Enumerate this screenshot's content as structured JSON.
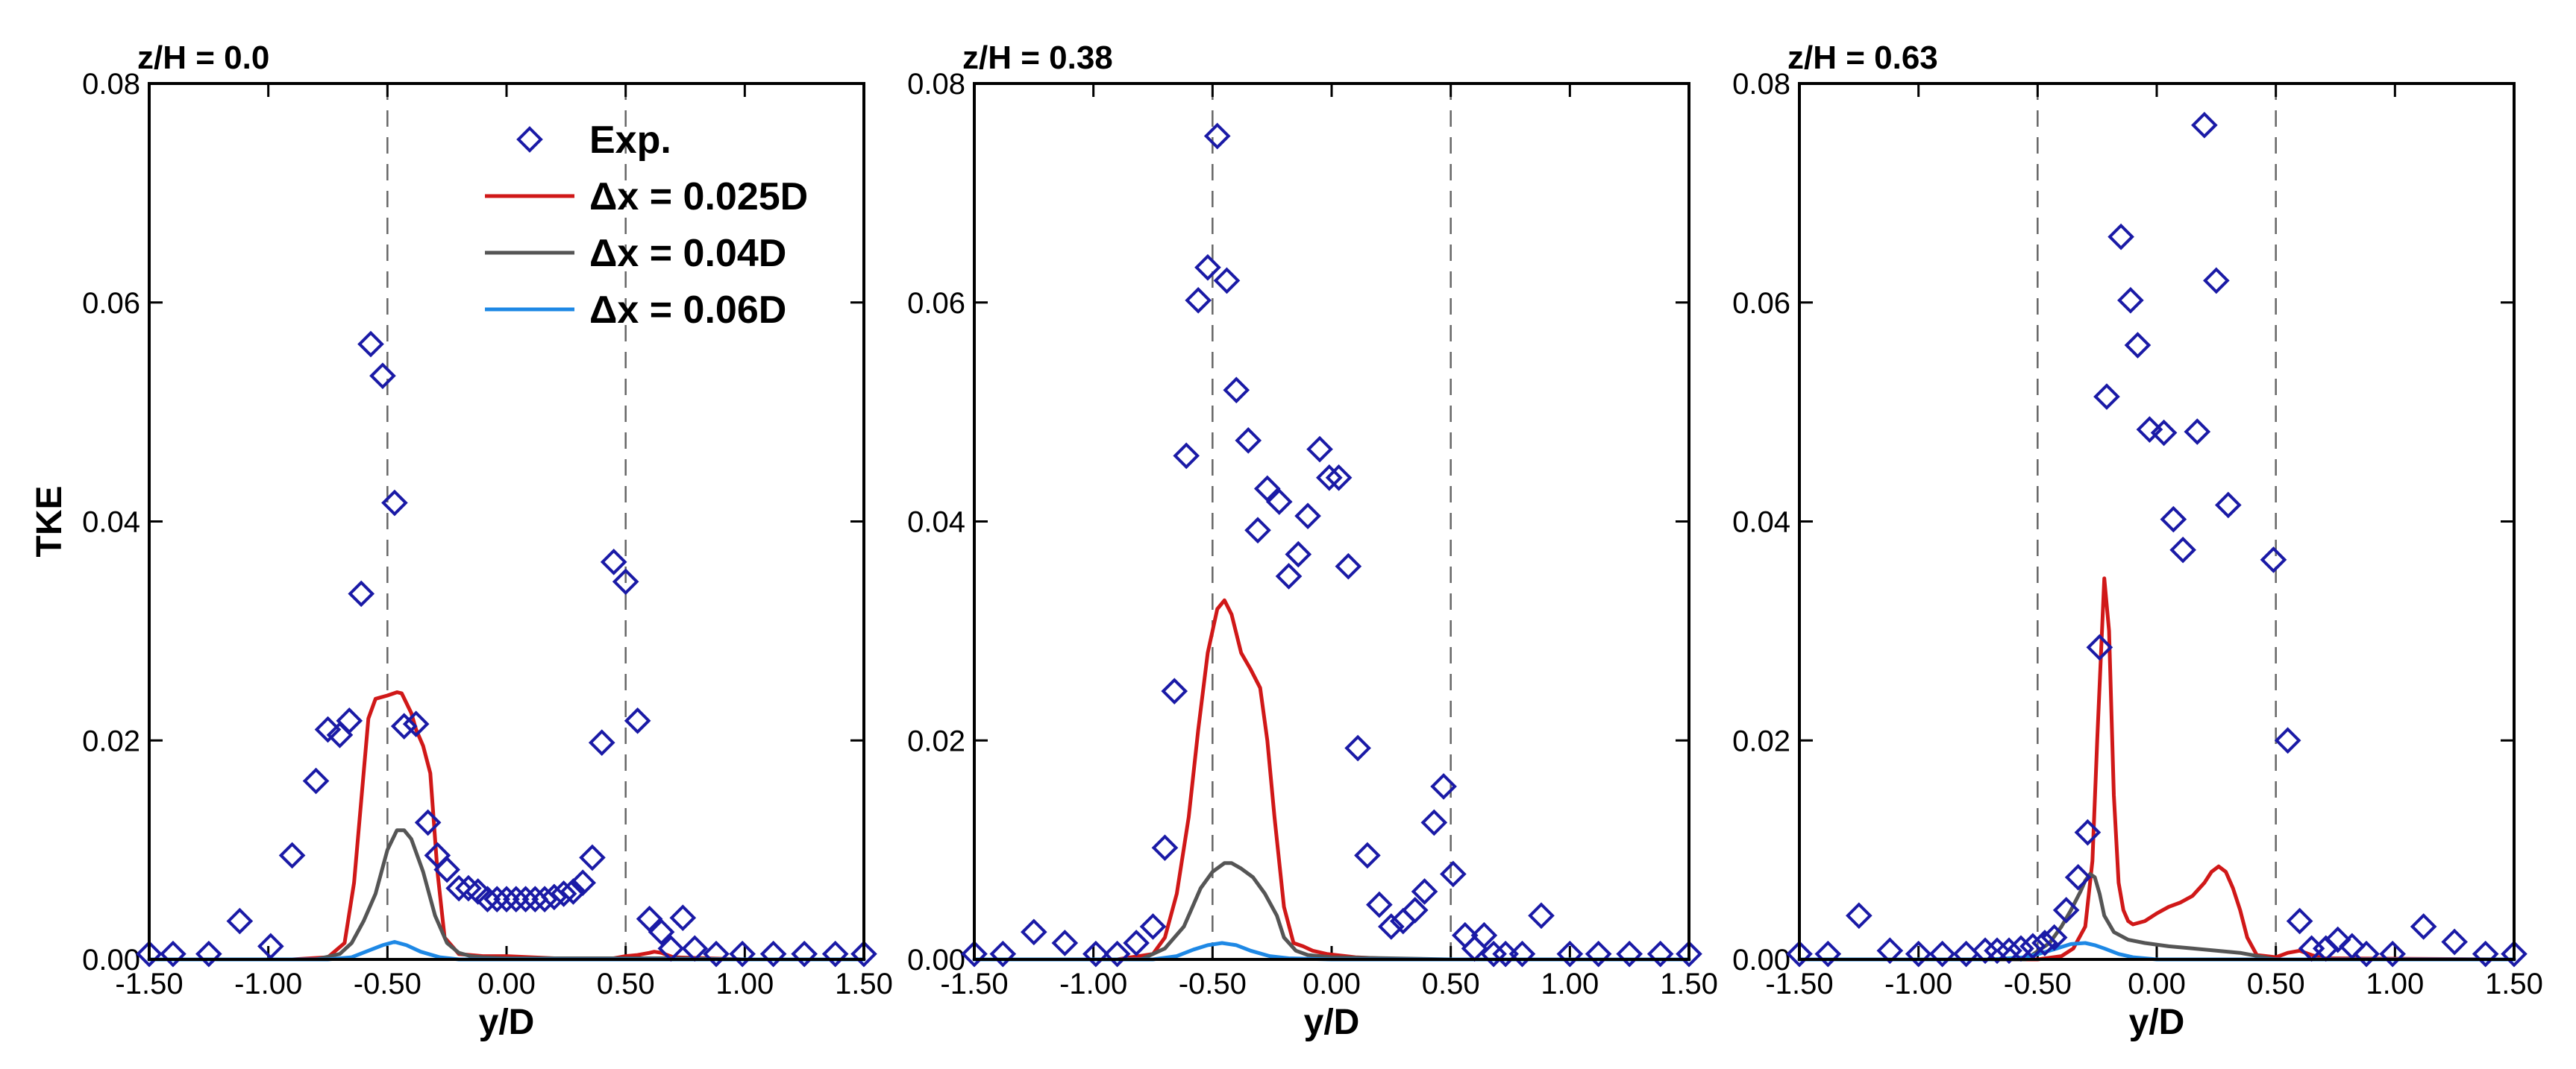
{
  "colors": {
    "exp": "#1a1aa6",
    "fine": "#d01818",
    "medium": "#555555",
    "coarse": "#1e88e5",
    "dashed": "#666666"
  },
  "legend": {
    "entries": [
      {
        "key": "exp",
        "label": "Exp."
      },
      {
        "key": "fine",
        "label": "Δx = 0.025D"
      },
      {
        "key": "medium",
        "label": "Δx = 0.04D"
      },
      {
        "key": "coarse",
        "label": "Δx = 0.06D"
      }
    ]
  },
  "chart_data": [
    {
      "type": "line",
      "title": "z/H = 0.0",
      "xlabel": "y/D",
      "ylabel": "TKE",
      "xlim": [
        -1.5,
        1.5
      ],
      "ylim": [
        0,
        0.08
      ],
      "xticks": [
        "-1.50",
        "-1.00",
        "-0.50",
        "0.00",
        "0.50",
        "1.00",
        "1.50"
      ],
      "yticks": [
        "0.00",
        "0.02",
        "0.04",
        "0.06",
        "0.08"
      ],
      "reference_lines_x": [
        -0.5,
        0.5
      ],
      "experiment": {
        "name": "Exp.",
        "x": [
          -1.5,
          -1.4,
          -1.25,
          -1.12,
          -0.99,
          -0.9,
          -0.8,
          -0.75,
          -0.7,
          -0.66,
          -0.61,
          -0.57,
          -0.52,
          -0.47,
          -0.43,
          -0.38,
          -0.33,
          -0.29,
          -0.25,
          -0.2,
          -0.16,
          -0.12,
          -0.08,
          -0.04,
          0.0,
          0.04,
          0.08,
          0.12,
          0.16,
          0.2,
          0.24,
          0.28,
          0.32,
          0.36,
          0.4,
          0.45,
          0.5,
          0.55,
          0.6,
          0.65,
          0.69,
          0.74,
          0.79,
          0.88,
          0.99,
          1.12,
          1.25,
          1.38,
          1.5
        ],
        "y": [
          0.0005,
          0.0005,
          0.0005,
          0.0035,
          0.0012,
          0.0095,
          0.0163,
          0.021,
          0.0205,
          0.0218,
          0.0334,
          0.0562,
          0.0533,
          0.0417,
          0.0213,
          0.0215,
          0.0125,
          0.0095,
          0.0082,
          0.0065,
          0.0065,
          0.0062,
          0.0055,
          0.0055,
          0.0055,
          0.0055,
          0.0055,
          0.0055,
          0.0055,
          0.0057,
          0.006,
          0.0062,
          0.007,
          0.0093,
          0.0198,
          0.0363,
          0.0345,
          0.0218,
          0.0037,
          0.0025,
          0.001,
          0.0038,
          0.001,
          0.0005,
          0.0005,
          0.0005,
          0.0005,
          0.0005,
          0.0005
        ]
      },
      "series": [
        {
          "name": "Δx = 0.025D",
          "key": "fine",
          "x": [
            -1.5,
            -0.9,
            -0.75,
            -0.68,
            -0.64,
            -0.6,
            -0.58,
            -0.55,
            -0.5,
            -0.46,
            -0.44,
            -0.4,
            -0.38,
            -0.35,
            -0.32,
            -0.29,
            -0.26,
            -0.2,
            -0.1,
            0.0,
            0.2,
            0.45,
            0.5,
            0.55,
            0.6,
            0.62,
            0.65,
            0.7,
            1.0,
            1.5
          ],
          "y": [
            0,
            0,
            0.0002,
            0.0015,
            0.007,
            0.017,
            0.022,
            0.0238,
            0.0241,
            0.0244,
            0.0243,
            0.0225,
            0.021,
            0.0195,
            0.017,
            0.008,
            0.002,
            0.0005,
            0.0003,
            0.0003,
            0.0001,
            0.0001,
            0.0003,
            0.0004,
            0.0006,
            0.0007,
            0.0006,
            0.0002,
            0,
            0
          ]
        },
        {
          "name": "Δx = 0.04D",
          "key": "medium",
          "x": [
            -1.5,
            -0.8,
            -0.7,
            -0.65,
            -0.6,
            -0.55,
            -0.5,
            -0.46,
            -0.43,
            -0.4,
            -0.35,
            -0.3,
            -0.25,
            -0.2,
            -0.15,
            -0.1,
            0.0,
            0.2,
            0.5,
            0.7,
            1.0,
            1.5
          ],
          "y": [
            0,
            0,
            0.0005,
            0.0015,
            0.0035,
            0.006,
            0.01,
            0.0118,
            0.0118,
            0.011,
            0.008,
            0.004,
            0.0015,
            0.0006,
            0.0003,
            0.0002,
            0.0001,
            0.0001,
            0.0001,
            0.0001,
            0,
            0
          ]
        },
        {
          "name": "Δx = 0.06D",
          "key": "coarse",
          "x": [
            -1.5,
            -0.75,
            -0.65,
            -0.58,
            -0.52,
            -0.47,
            -0.42,
            -0.36,
            -0.28,
            -0.2,
            0.0,
            1.5
          ],
          "y": [
            0,
            0,
            0.0002,
            0.0008,
            0.0013,
            0.0016,
            0.0013,
            0.0007,
            0.0002,
            0,
            0,
            0
          ]
        }
      ]
    },
    {
      "type": "line",
      "title": "z/H = 0.38",
      "xlabel": "y/D",
      "ylabel": "",
      "xlim": [
        -1.5,
        1.5
      ],
      "ylim": [
        0,
        0.08
      ],
      "xticks": [
        "-1.50",
        "-1.00",
        "-0.50",
        "0.00",
        "0.50",
        "1.00",
        "1.50"
      ],
      "yticks": [
        "0.00",
        "0.02",
        "0.04",
        "0.06",
        "0.08"
      ],
      "reference_lines_x": [
        -0.5,
        0.5
      ],
      "experiment": {
        "name": "Exp.",
        "x": [
          -1.5,
          -1.38,
          -1.25,
          -1.12,
          -0.99,
          -0.9,
          -0.82,
          -0.75,
          -0.7,
          -0.66,
          -0.61,
          -0.56,
          -0.52,
          -0.48,
          -0.44,
          -0.4,
          -0.35,
          -0.31,
          -0.27,
          -0.22,
          -0.18,
          -0.14,
          -0.1,
          -0.05,
          -0.01,
          0.03,
          0.07,
          0.11,
          0.15,
          0.2,
          0.25,
          0.3,
          0.35,
          0.39,
          0.43,
          0.47,
          0.51,
          0.56,
          0.6,
          0.64,
          0.68,
          0.73,
          0.8,
          0.88,
          1.0,
          1.12,
          1.25,
          1.38,
          1.5
        ],
        "y": [
          0.0005,
          0.0005,
          0.0025,
          0.0015,
          0.0005,
          0.0005,
          0.0015,
          0.003,
          0.0102,
          0.0245,
          0.046,
          0.0602,
          0.0632,
          0.0752,
          0.062,
          0.052,
          0.0474,
          0.0392,
          0.043,
          0.0418,
          0.035,
          0.037,
          0.0405,
          0.0466,
          0.044,
          0.044,
          0.0359,
          0.0193,
          0.0095,
          0.005,
          0.003,
          0.0035,
          0.0045,
          0.0062,
          0.0125,
          0.0158,
          0.0078,
          0.0022,
          0.001,
          0.0022,
          0.0005,
          0.0005,
          0.0005,
          0.004,
          0.0005,
          0.0005,
          0.0005,
          0.0005,
          0.0005
        ]
      },
      "series": [
        {
          "name": "Δx = 0.025D",
          "key": "fine",
          "x": [
            -1.5,
            -0.9,
            -0.75,
            -0.7,
            -0.65,
            -0.6,
            -0.56,
            -0.52,
            -0.48,
            -0.45,
            -0.42,
            -0.38,
            -0.34,
            -0.3,
            -0.27,
            -0.24,
            -0.2,
            -0.16,
            -0.12,
            -0.08,
            -0.02,
            0.1,
            0.3,
            0.5,
            1.5
          ],
          "y": [
            0,
            0,
            0.0005,
            0.002,
            0.006,
            0.013,
            0.021,
            0.028,
            0.032,
            0.0328,
            0.0315,
            0.028,
            0.0265,
            0.0248,
            0.02,
            0.013,
            0.0048,
            0.0015,
            0.0012,
            0.0008,
            0.0005,
            0.0002,
            0,
            0,
            0
          ]
        },
        {
          "name": "Δx = 0.04D",
          "key": "medium",
          "x": [
            -1.5,
            -0.8,
            -0.7,
            -0.62,
            -0.55,
            -0.5,
            -0.45,
            -0.42,
            -0.38,
            -0.33,
            -0.28,
            -0.23,
            -0.2,
            -0.15,
            -0.1,
            0.0,
            0.5,
            1.5
          ],
          "y": [
            0,
            0,
            0.001,
            0.003,
            0.0065,
            0.008,
            0.0088,
            0.0088,
            0.0083,
            0.0075,
            0.006,
            0.004,
            0.002,
            0.0008,
            0.0004,
            0.0002,
            0,
            0
          ]
        },
        {
          "name": "Δx = 0.06D",
          "key": "coarse",
          "x": [
            -1.5,
            -0.75,
            -0.65,
            -0.58,
            -0.52,
            -0.46,
            -0.4,
            -0.34,
            -0.26,
            -0.18,
            0.0,
            1.5
          ],
          "y": [
            0,
            0,
            0.0003,
            0.0009,
            0.0013,
            0.0015,
            0.0013,
            0.0008,
            0.0003,
            0.0001,
            0,
            0
          ]
        }
      ]
    },
    {
      "type": "line",
      "title": "z/H = 0.63",
      "xlabel": "y/D",
      "ylabel": "",
      "xlim": [
        -1.5,
        1.5
      ],
      "ylim": [
        0,
        0.08
      ],
      "xticks": [
        "-1.50",
        "-1.00",
        "-0.50",
        "0.00",
        "0.50",
        "1.00",
        "1.50"
      ],
      "yticks": [
        "0.00",
        "0.02",
        "0.04",
        "0.06",
        "0.08"
      ],
      "reference_lines_x": [
        -0.5,
        0.5
      ],
      "experiment": {
        "name": "Exp.",
        "x": [
          -1.5,
          -1.38,
          -1.25,
          -1.12,
          -1.0,
          -0.9,
          -0.8,
          -0.72,
          -0.67,
          -0.62,
          -0.57,
          -0.52,
          -0.47,
          -0.43,
          -0.38,
          -0.33,
          -0.29,
          -0.24,
          -0.21,
          -0.15,
          -0.11,
          -0.08,
          -0.03,
          0.03,
          0.07,
          0.11,
          0.17,
          0.2,
          0.25,
          0.3,
          0.49,
          0.55,
          0.6,
          0.65,
          0.71,
          0.76,
          0.82,
          0.88,
          0.99,
          1.12,
          1.25,
          1.38,
          1.5
        ],
        "y": [
          0.0005,
          0.0005,
          0.004,
          0.0008,
          0.0005,
          0.0005,
          0.0005,
          0.0008,
          0.0008,
          0.0008,
          0.001,
          0.0012,
          0.0015,
          0.002,
          0.0045,
          0.0075,
          0.0116,
          0.0285,
          0.0514,
          0.066,
          0.0602,
          0.0561,
          0.0484,
          0.0481,
          0.0402,
          0.0374,
          0.0482,
          0.0762,
          0.062,
          0.0415,
          0.0365,
          0.02,
          0.0035,
          0.001,
          0.001,
          0.0018,
          0.0012,
          0.0005,
          0.0005,
          0.003,
          0.0016,
          0.0005,
          0.0005
        ]
      },
      "series": [
        {
          "name": "Δx = 0.025D",
          "key": "fine",
          "x": [
            -1.5,
            -0.5,
            -0.4,
            -0.35,
            -0.3,
            -0.27,
            -0.25,
            -0.22,
            -0.2,
            -0.18,
            -0.16,
            -0.14,
            -0.12,
            -0.1,
            -0.05,
            0.0,
            0.05,
            0.1,
            0.15,
            0.2,
            0.23,
            0.26,
            0.29,
            0.32,
            0.35,
            0.38,
            0.42,
            0.5,
            0.55,
            0.6,
            0.65,
            0.7,
            1.5
          ],
          "y": [
            0,
            0,
            0.0003,
            0.001,
            0.003,
            0.009,
            0.02,
            0.0348,
            0.03,
            0.015,
            0.007,
            0.0045,
            0.0035,
            0.0032,
            0.0035,
            0.0042,
            0.0048,
            0.0052,
            0.0058,
            0.007,
            0.008,
            0.0085,
            0.008,
            0.0065,
            0.0045,
            0.002,
            0.0004,
            0.0002,
            0.0006,
            0.0008,
            0.0004,
            0.0001,
            0
          ]
        },
        {
          "name": "Δx = 0.04D",
          "key": "medium",
          "x": [
            -1.5,
            -0.55,
            -0.45,
            -0.4,
            -0.36,
            -0.32,
            -0.3,
            -0.28,
            -0.26,
            -0.24,
            -0.22,
            -0.18,
            -0.12,
            -0.05,
            0.05,
            0.15,
            0.25,
            0.35,
            0.45,
            0.5,
            1.5
          ],
          "y": [
            0,
            0,
            0.0015,
            0.003,
            0.0045,
            0.0062,
            0.0072,
            0.0078,
            0.0075,
            0.006,
            0.004,
            0.0025,
            0.0018,
            0.0015,
            0.0012,
            0.001,
            0.0008,
            0.0006,
            0.0002,
            0,
            0
          ]
        },
        {
          "name": "Δx = 0.06D",
          "key": "coarse",
          "x": [
            -1.5,
            -0.7,
            -0.55,
            -0.48,
            -0.42,
            -0.36,
            -0.3,
            -0.26,
            -0.22,
            -0.16,
            -0.1,
            0.0,
            1.5
          ],
          "y": [
            0,
            0,
            0.0002,
            0.0006,
            0.001,
            0.0014,
            0.0015,
            0.0013,
            0.001,
            0.0005,
            0.0002,
            0,
            0
          ]
        }
      ]
    }
  ]
}
